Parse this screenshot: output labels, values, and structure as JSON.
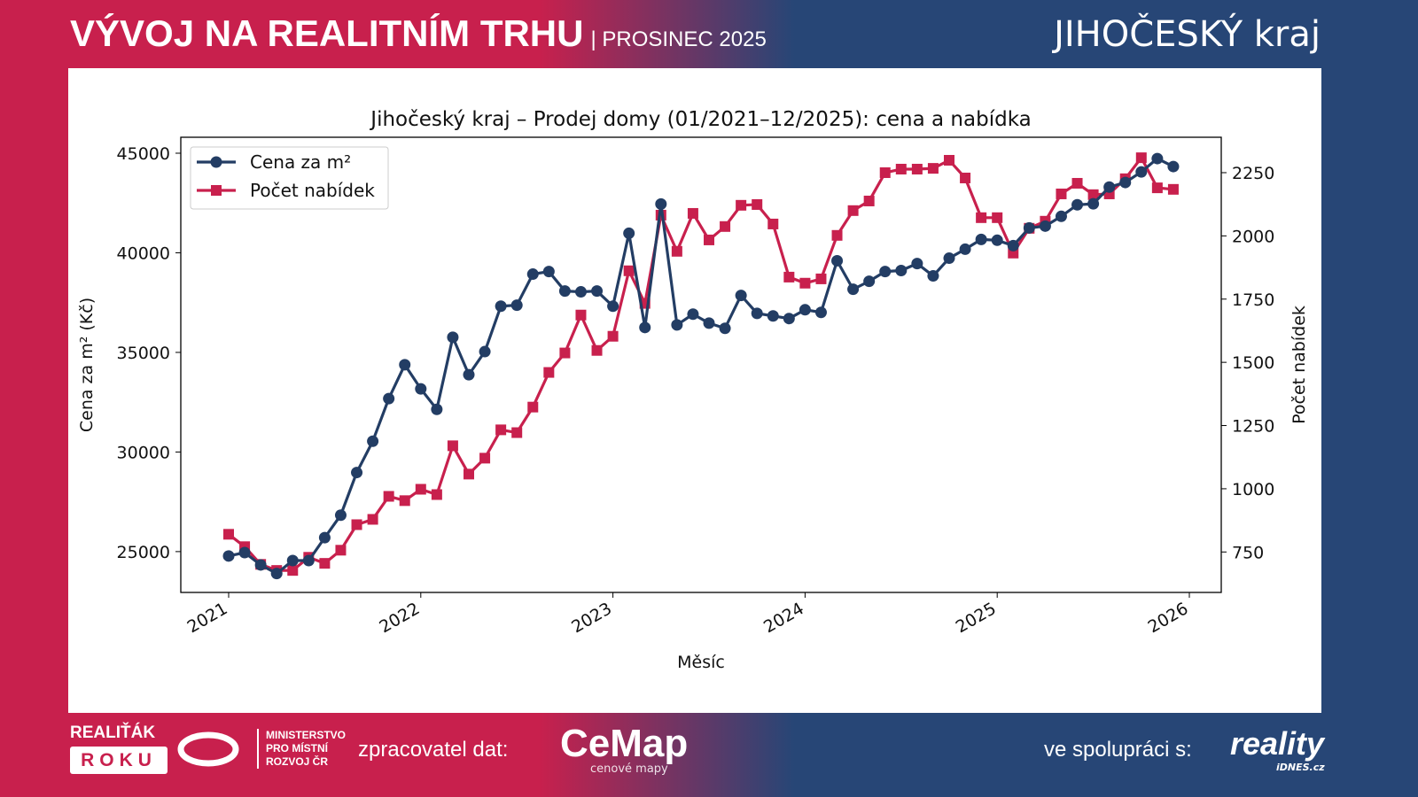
{
  "header": {
    "title": "VÝVOJ NA REALITNÍM TRHU",
    "subtitle": "| PROSINEC 2025",
    "region": "JIHOČESKÝ kraj"
  },
  "footer": {
    "realitak_line1": "REALIŤÁK",
    "realitak_line2": "ROKU",
    "mmr": [
      "MINISTERSTVO",
      "PRO MÍSTNÍ",
      "ROZVOJ ČR"
    ],
    "processor_label": "zpracovatel dat:",
    "cemap": "CeMap",
    "cemap_sub": "cenové mapy",
    "partner_label": "ve spolupráci s:",
    "reality": "reality",
    "idnes": "iDNES.cz"
  },
  "colors": {
    "price": "#233d64",
    "listings": "#c8204d"
  },
  "chart_data": {
    "type": "line",
    "title": "Jihočeský kraj – Prodej domy (01/2021–12/2025): cena a nabídka",
    "xlabel": "Měsíc",
    "ylabel": "Cena za m² (Kč)",
    "ylabel_right": "Počet nabídek",
    "xticks": [
      "2021",
      "2022",
      "2023",
      "2024",
      "2025",
      "2026"
    ],
    "yticks_left": [
      "25000",
      "30000",
      "35000",
      "40000",
      "45000"
    ],
    "yticks_right": [
      "750",
      "1000",
      "1250",
      "1500",
      "1750",
      "2000",
      "2250"
    ],
    "ylim_left": [
      22950,
      45800
    ],
    "ylim_right": [
      590,
      2390
    ],
    "x_start": "2021-01",
    "x_end": "2025-12",
    "legend": "top-left",
    "series": [
      {
        "name": "Cena za m²",
        "axis": "left",
        "marker": "circle",
        "values": [
          24780,
          24950,
          24330,
          23900,
          24550,
          24550,
          25700,
          26830,
          28970,
          30540,
          32680,
          34380,
          33170,
          32140,
          35760,
          33880,
          35040,
          37320,
          37370,
          38930,
          39060,
          38080,
          38040,
          38080,
          37320,
          40980,
          36250,
          42450,
          36380,
          36920,
          36470,
          36210,
          37860,
          36960,
          36830,
          36700,
          37140,
          37010,
          39600,
          38170,
          38570,
          39060,
          39110,
          39460,
          38840,
          39730,
          40180,
          40670,
          40630,
          40360,
          41250,
          41340,
          41830,
          42410,
          42460,
          43300,
          43530,
          44060,
          44730,
          44330
        ]
      },
      {
        "name": "Počet nabídek",
        "axis": "right",
        "marker": "square",
        "values": [
          820,
          771,
          701,
          677,
          677,
          729,
          705,
          757,
          858,
          879,
          970,
          953,
          998,
          977,
          1170,
          1058,
          1121,
          1233,
          1222,
          1323,
          1460,
          1537,
          1687,
          1547,
          1603,
          1862,
          1733,
          2082,
          1939,
          2089,
          1984,
          2037,
          2121,
          2124,
          2047,
          1837,
          1813,
          1830,
          2002,
          2100,
          2138,
          2250,
          2264,
          2264,
          2267,
          2299,
          2229,
          2072,
          2072,
          1932,
          2030,
          2058,
          2166,
          2208,
          2163,
          2166,
          2226,
          2309,
          2190,
          2184
        ]
      }
    ]
  }
}
